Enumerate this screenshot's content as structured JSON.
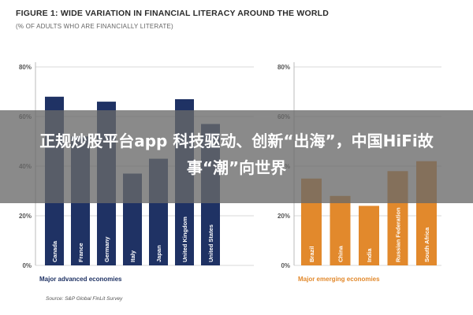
{
  "figure": {
    "title": "FIGURE 1: WIDE VARIATION IN FINANCIAL LITERACY AROUND THE WORLD",
    "subtitle": "(% OF ADULTS WHO ARE FINANCIALLY LITERATE)",
    "source": "Source: S&P Global FinLit Survey"
  },
  "overlay": {
    "text": "正规炒股平台app 科技驱动、创新“出海”，中国HiFi故事“潮”向世界"
  },
  "chart_data": [
    {
      "type": "bar",
      "panel_label": "Major advanced economies",
      "categories": [
        "Canada",
        "France",
        "Germany",
        "Italy",
        "Japan",
        "United Kingdom",
        "United States"
      ],
      "values": [
        68,
        52,
        66,
        37,
        43,
        67,
        57
      ],
      "ylim": [
        0,
        80
      ],
      "yticks": [
        "0%",
        "20%",
        "40%",
        "60%",
        "80%"
      ],
      "grid": true,
      "color": "#1f3264"
    },
    {
      "type": "bar",
      "panel_label": "Major emerging economies",
      "categories": [
        "Brazil",
        "China",
        "India",
        "Russian Federation",
        "South Africa"
      ],
      "values": [
        35,
        28,
        24,
        38,
        42
      ],
      "ylim": [
        0,
        80
      ],
      "yticks": [
        "0%",
        "20%",
        "40%",
        "60%",
        "80%"
      ],
      "grid": true,
      "color": "#e2892c"
    }
  ]
}
